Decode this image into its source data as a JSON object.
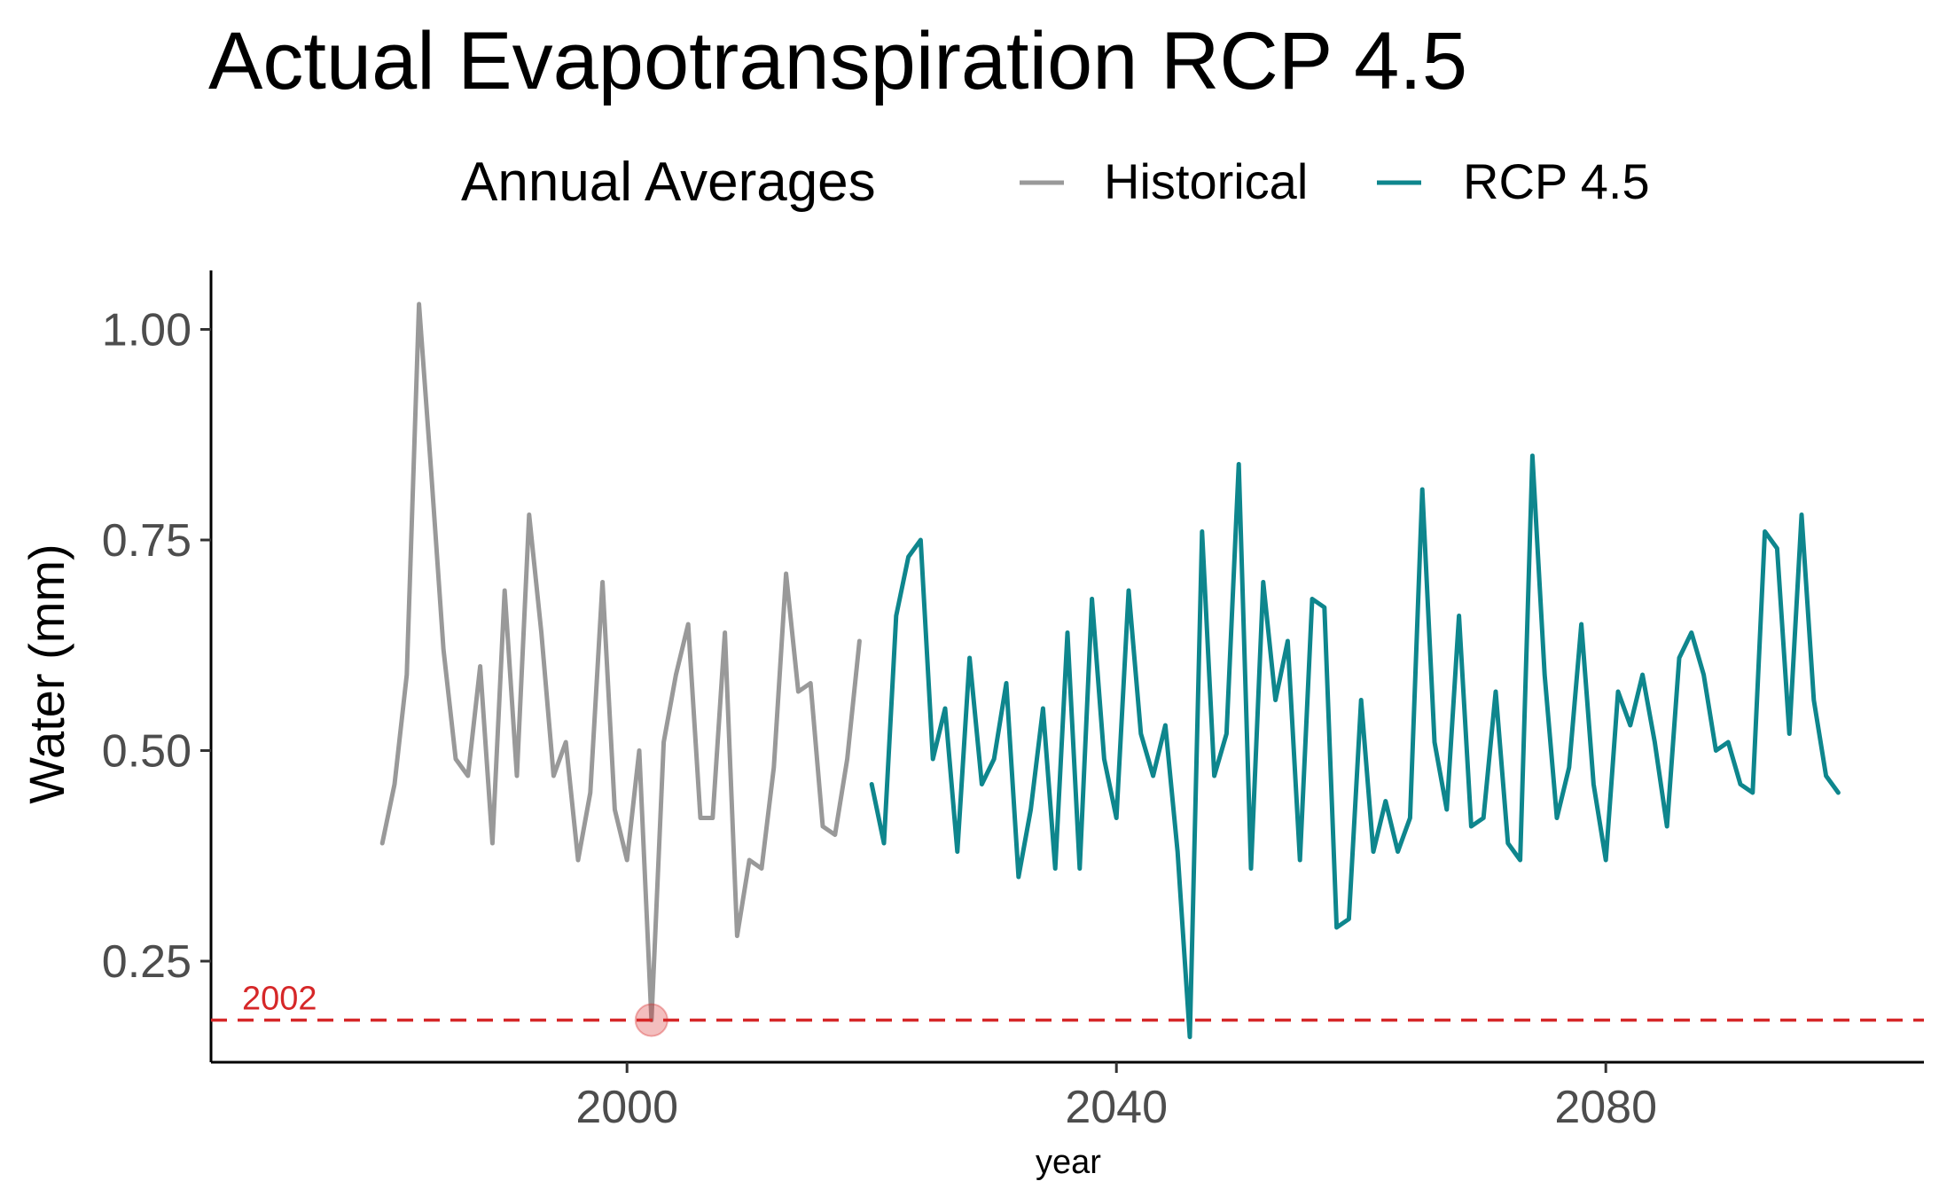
{
  "chart_data": {
    "type": "line",
    "title": "Actual Evapotranspiration RCP 4.5",
    "xlabel": "year",
    "ylabel": "Water (mm)",
    "xlim": [
      1966,
      2106
    ],
    "ylim": [
      0.13,
      1.07
    ],
    "x_ticks": [
      2000,
      2040,
      2080
    ],
    "y_ticks": [
      0.25,
      0.5,
      0.75,
      1.0
    ],
    "x_tick_labels": [
      "2000",
      "2040",
      "2080"
    ],
    "y_tick_labels": [
      "0.25",
      "0.50",
      "0.75",
      "1.00"
    ],
    "grid": false,
    "legend": {
      "title": "Annual Averages",
      "position": "top",
      "entries": [
        "Historical",
        "RCP 4.5"
      ]
    },
    "series": [
      {
        "name": "Historical",
        "color": "#999999",
        "x": [
          1980,
          1981,
          1982,
          1983,
          1984,
          1985,
          1986,
          1987,
          1988,
          1989,
          1990,
          1991,
          1992,
          1993,
          1994,
          1995,
          1996,
          1997,
          1998,
          1999,
          2000,
          2001,
          2002,
          2003,
          2004,
          2005,
          2006,
          2007,
          2008,
          2009,
          2010,
          2011,
          2012,
          2013,
          2014,
          2015,
          2016,
          2017,
          2018,
          2019
        ],
        "values": [
          0.39,
          0.46,
          0.59,
          1.03,
          0.83,
          0.62,
          0.49,
          0.47,
          0.6,
          0.39,
          0.69,
          0.47,
          0.78,
          0.64,
          0.47,
          0.51,
          0.37,
          0.45,
          0.7,
          0.43,
          0.37,
          0.5,
          0.18,
          0.51,
          0.59,
          0.65,
          0.42,
          0.42,
          0.64,
          0.28,
          0.37,
          0.36,
          0.48,
          0.71,
          0.57,
          0.58,
          0.41,
          0.4,
          0.49,
          0.63
        ]
      },
      {
        "name": "RCP 4.5",
        "color": "#0e868d",
        "x": [
          2020,
          2021,
          2022,
          2023,
          2024,
          2025,
          2026,
          2027,
          2028,
          2029,
          2030,
          2031,
          2032,
          2033,
          2034,
          2035,
          2036,
          2037,
          2038,
          2039,
          2040,
          2041,
          2042,
          2043,
          2044,
          2045,
          2046,
          2047,
          2048,
          2049,
          2050,
          2051,
          2052,
          2053,
          2054,
          2055,
          2056,
          2057,
          2058,
          2059,
          2060,
          2061,
          2062,
          2063,
          2064,
          2065,
          2066,
          2067,
          2068,
          2069,
          2070,
          2071,
          2072,
          2073,
          2074,
          2075,
          2076,
          2077,
          2078,
          2079,
          2080,
          2081,
          2082,
          2083,
          2084,
          2085,
          2086,
          2087,
          2088,
          2089,
          2090,
          2091,
          2092,
          2093,
          2094,
          2095,
          2096,
          2097,
          2098,
          2099
        ],
        "values": [
          0.46,
          0.39,
          0.66,
          0.73,
          0.75,
          0.49,
          0.55,
          0.38,
          0.61,
          0.46,
          0.49,
          0.58,
          0.35,
          0.43,
          0.55,
          0.36,
          0.64,
          0.36,
          0.68,
          0.49,
          0.42,
          0.69,
          0.52,
          0.47,
          0.53,
          0.38,
          0.16,
          0.76,
          0.47,
          0.52,
          0.84,
          0.36,
          0.7,
          0.56,
          0.63,
          0.37,
          0.68,
          0.67,
          0.29,
          0.3,
          0.56,
          0.38,
          0.44,
          0.38,
          0.42,
          0.81,
          0.51,
          0.43,
          0.66,
          0.41,
          0.42,
          0.57,
          0.39,
          0.37,
          0.85,
          0.59,
          0.42,
          0.48,
          0.65,
          0.46,
          0.37,
          0.57,
          0.53,
          0.59,
          0.51,
          0.41,
          0.61,
          0.64,
          0.59,
          0.5,
          0.51,
          0.46,
          0.45,
          0.76,
          0.74,
          0.52,
          0.78,
          0.56,
          0.47,
          0.45
        ]
      }
    ],
    "annotations": [
      {
        "type": "hline",
        "y": 0.18,
        "color": "#d62728",
        "style": "dashed",
        "label": "2002"
      },
      {
        "type": "point",
        "x": 2002,
        "y": 0.18,
        "color": "#d62728"
      }
    ]
  }
}
